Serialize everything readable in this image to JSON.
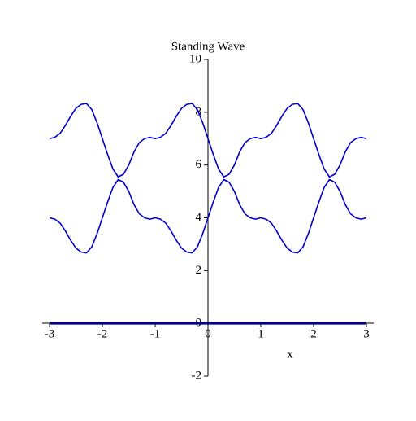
{
  "chart_data": {
    "type": "line",
    "title": "Standing Wave",
    "x_label": "x",
    "x": [
      -3,
      -2.9,
      -2.8,
      -2.7,
      -2.6,
      -2.5,
      -2.4,
      -2.3,
      -2.2,
      -2.1,
      -2,
      -1.9,
      -1.8,
      -1.7,
      -1.6,
      -1.5,
      -1.4,
      -1.3,
      -1.2,
      -1.1,
      -1,
      -0.9,
      -0.8,
      -0.7,
      -0.6,
      -0.5,
      -0.4,
      -0.3,
      -0.2,
      -0.1,
      0,
      0.1,
      0.2,
      0.3,
      0.4,
      0.5,
      0.6,
      0.7,
      0.8,
      0.9,
      1,
      1.1,
      1.2,
      1.3,
      1.4,
      1.5,
      1.6,
      1.7,
      1.8,
      1.9,
      2,
      2.1,
      2.2,
      2.3,
      2.4,
      2.5,
      2.6,
      2.7,
      2.8,
      2.9,
      3
    ],
    "series": [
      {
        "color": "#0000cc",
        "values": [
          7,
          7.05,
          7.2,
          7.5,
          7.85,
          8.15,
          8.3,
          8.33,
          8.1,
          7.6,
          7,
          6.4,
          5.85,
          5.55,
          5.65,
          6,
          6.5,
          6.85,
          7,
          7.05,
          7,
          7.05,
          7.2,
          7.5,
          7.85,
          8.15,
          8.3,
          8.33,
          8.1,
          7.6,
          7,
          6.4,
          5.85,
          5.55,
          5.65,
          6,
          6.5,
          6.85,
          7,
          7.05,
          7,
          7.05,
          7.2,
          7.5,
          7.85,
          8.15,
          8.3,
          8.33,
          8.1,
          7.6,
          7,
          6.4,
          5.85,
          5.55,
          5.65,
          6,
          6.5,
          6.85,
          7,
          7.05,
          7
        ]
      },
      {
        "color": "#0000cc",
        "values": [
          4,
          3.95,
          3.8,
          3.5,
          3.15,
          2.85,
          2.7,
          2.67,
          2.9,
          3.4,
          4,
          4.6,
          5.15,
          5.45,
          5.35,
          5,
          4.5,
          4.15,
          4,
          3.95,
          4,
          3.95,
          3.8,
          3.5,
          3.15,
          2.85,
          2.7,
          2.67,
          2.9,
          3.4,
          4,
          4.6,
          5.15,
          5.45,
          5.35,
          5,
          4.5,
          4.15,
          4,
          3.95,
          4,
          3.95,
          3.8,
          3.5,
          3.15,
          2.85,
          2.7,
          2.67,
          2.9,
          3.4,
          4,
          4.6,
          5.15,
          5.45,
          5.35,
          5,
          4.5,
          4.15,
          4,
          3.95,
          4
        ]
      },
      {
        "color": "#00008b",
        "x": [
          -3,
          3
        ],
        "values": [
          0,
          0
        ]
      }
    ],
    "xlim": [
      -3,
      3
    ],
    "ylim": [
      -2,
      10
    ],
    "xticks": [
      -3,
      -2,
      -1,
      0,
      1,
      2,
      3
    ],
    "yticks": [
      -2,
      0,
      2,
      4,
      6,
      8,
      10
    ]
  }
}
